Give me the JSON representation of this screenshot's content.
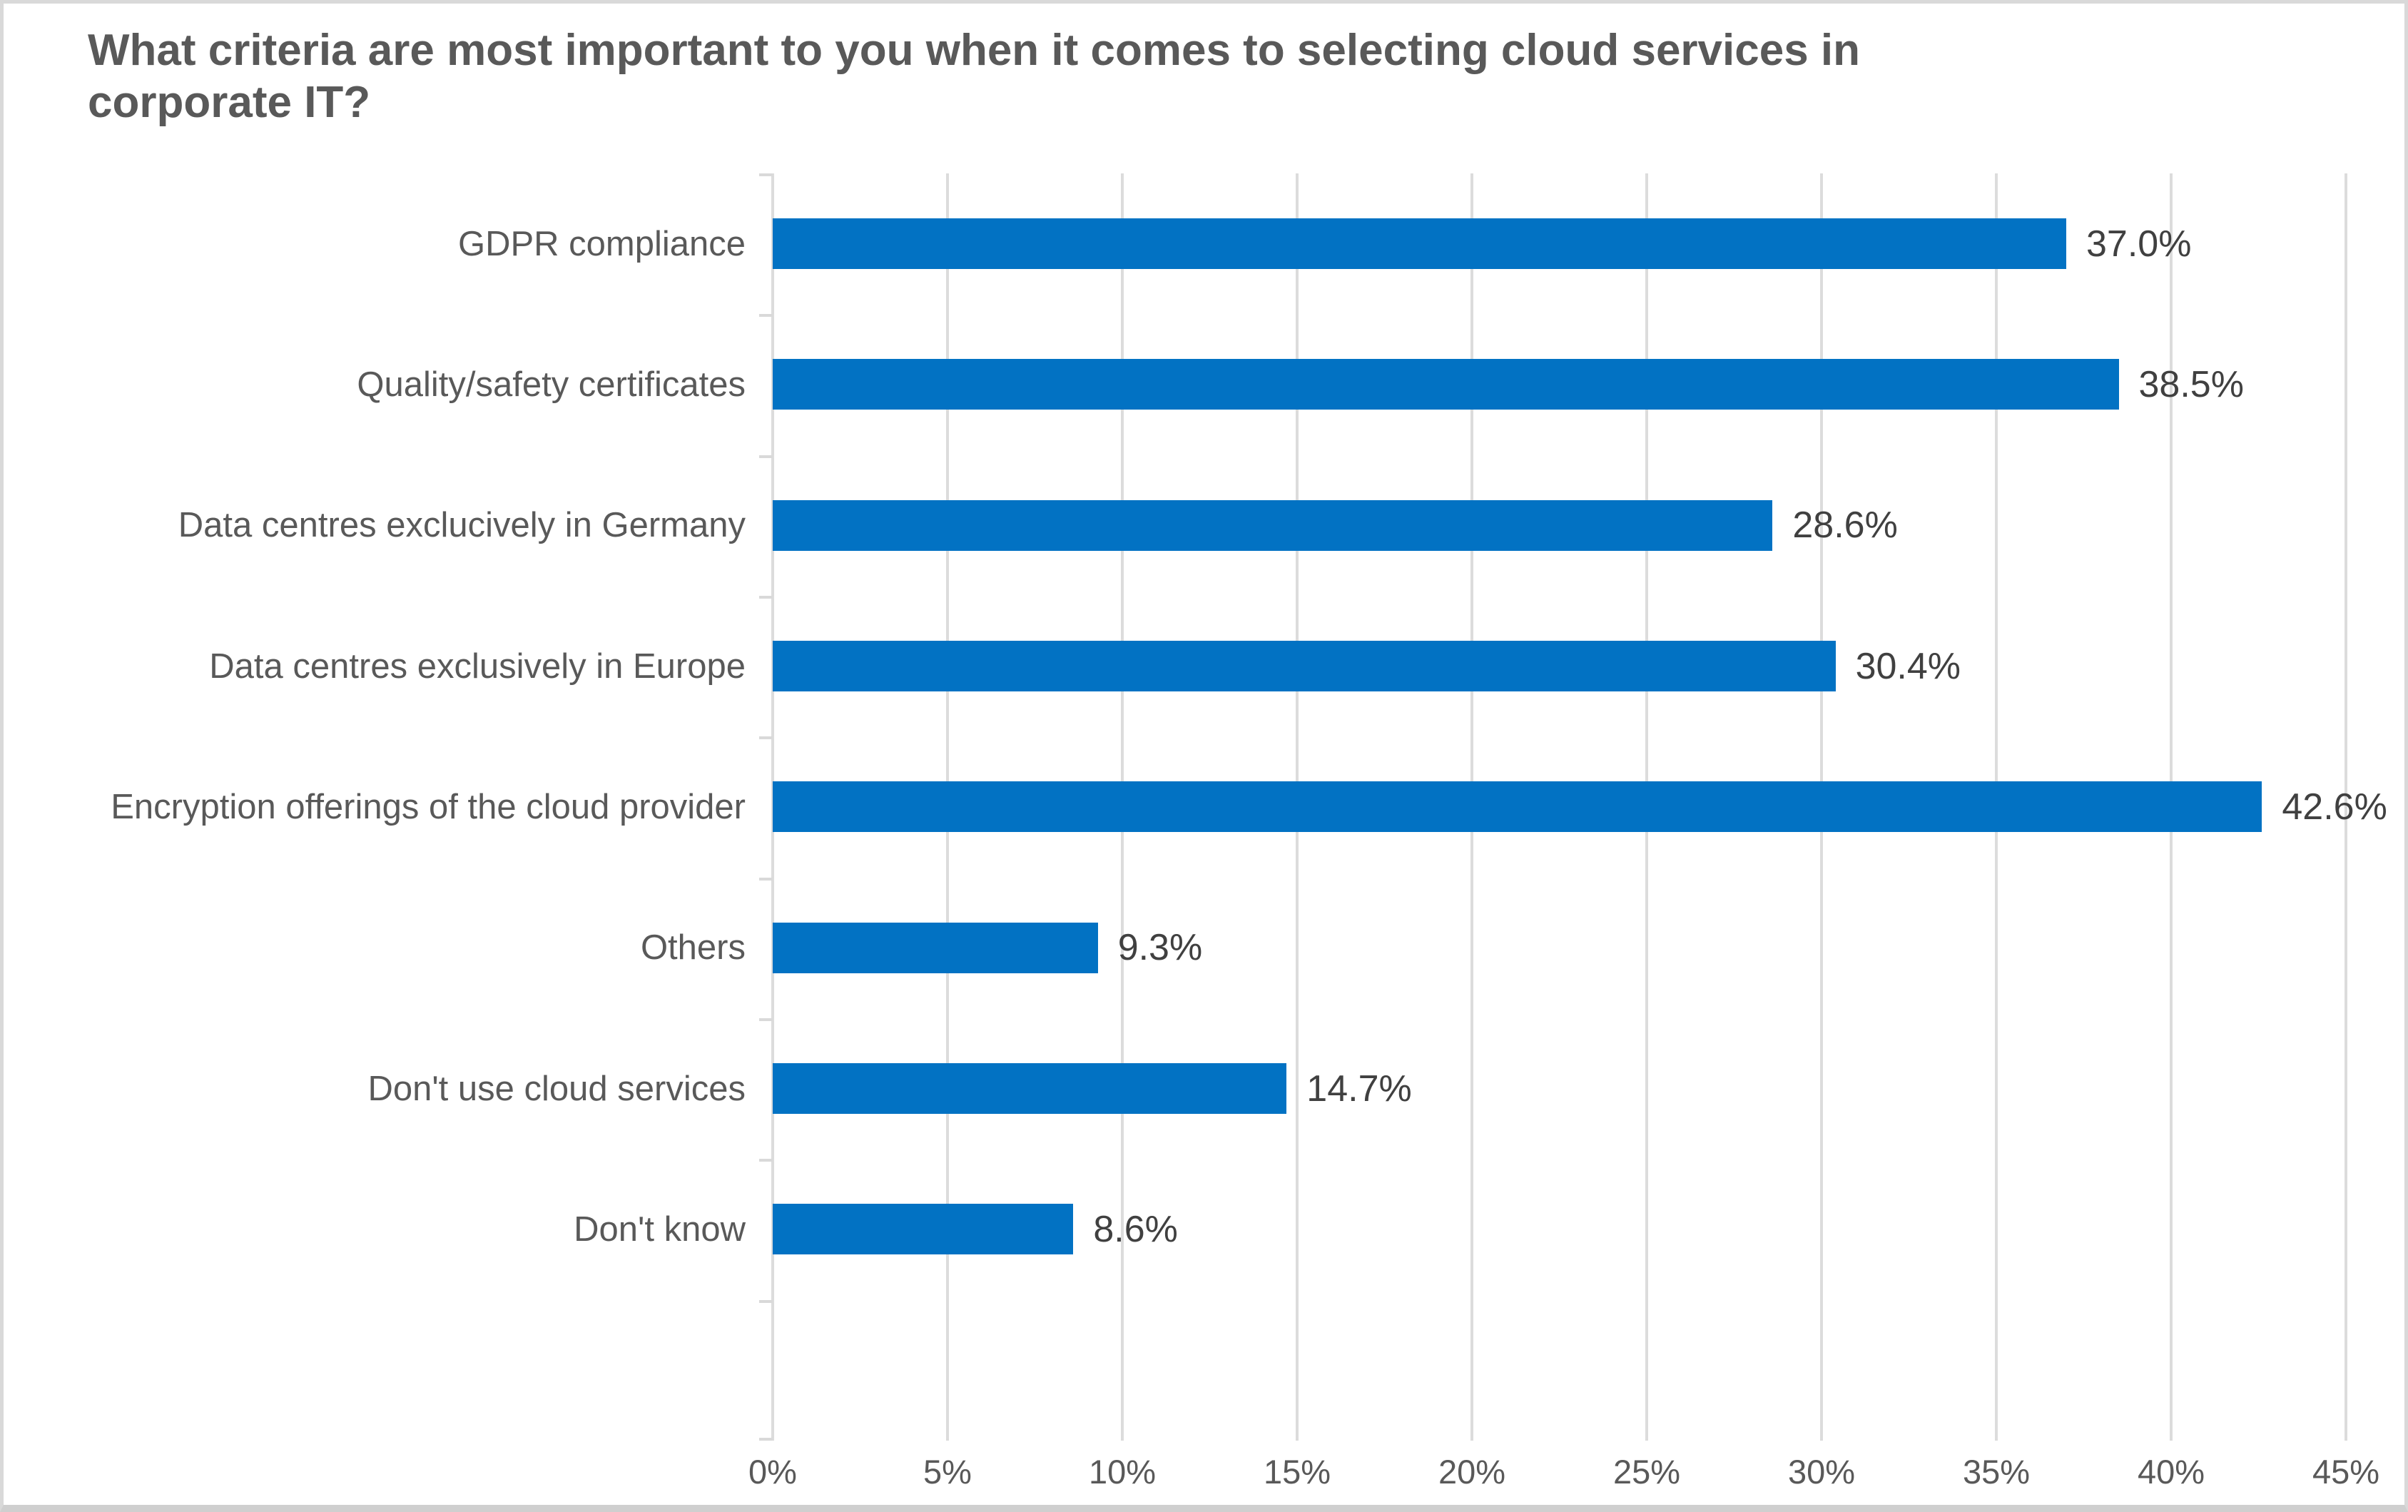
{
  "title": "What criteria are most important to you when it comes to selecting cloud services in corporate IT?",
  "chart_data": {
    "type": "bar",
    "orientation": "horizontal",
    "title": "What criteria are most important to you when it comes to selecting cloud services in corporate IT?",
    "categories": [
      "GDPR compliance",
      "Quality/safety certificates",
      "Data centres exclucively in Germany",
      "Data centres exclusively in Europe",
      "Encryption offerings of the cloud provider",
      "Others",
      "Don't use cloud services",
      "Don't know"
    ],
    "values": [
      37.0,
      38.5,
      28.6,
      30.4,
      42.6,
      9.3,
      14.7,
      8.6
    ],
    "value_labels": [
      "37.0%",
      "38.5%",
      "28.6%",
      "30.4%",
      "42.6%",
      "9.3%",
      "14.7%",
      "8.6%"
    ],
    "xlabel": "",
    "ylabel": "",
    "xlim": [
      0,
      45
    ],
    "xtick_step": 5,
    "xtick_labels": [
      "0%",
      "5%",
      "10%",
      "15%",
      "20%",
      "25%",
      "30%",
      "35%",
      "40%",
      "45%"
    ],
    "grid": true,
    "legend": "none",
    "bar_color": "#0272c3",
    "gridline_color": "#dcdcdc",
    "title_color": "#595959",
    "category_label_color": "#595959",
    "value_label_color": "#404040",
    "axis_label_color": "#595959"
  }
}
